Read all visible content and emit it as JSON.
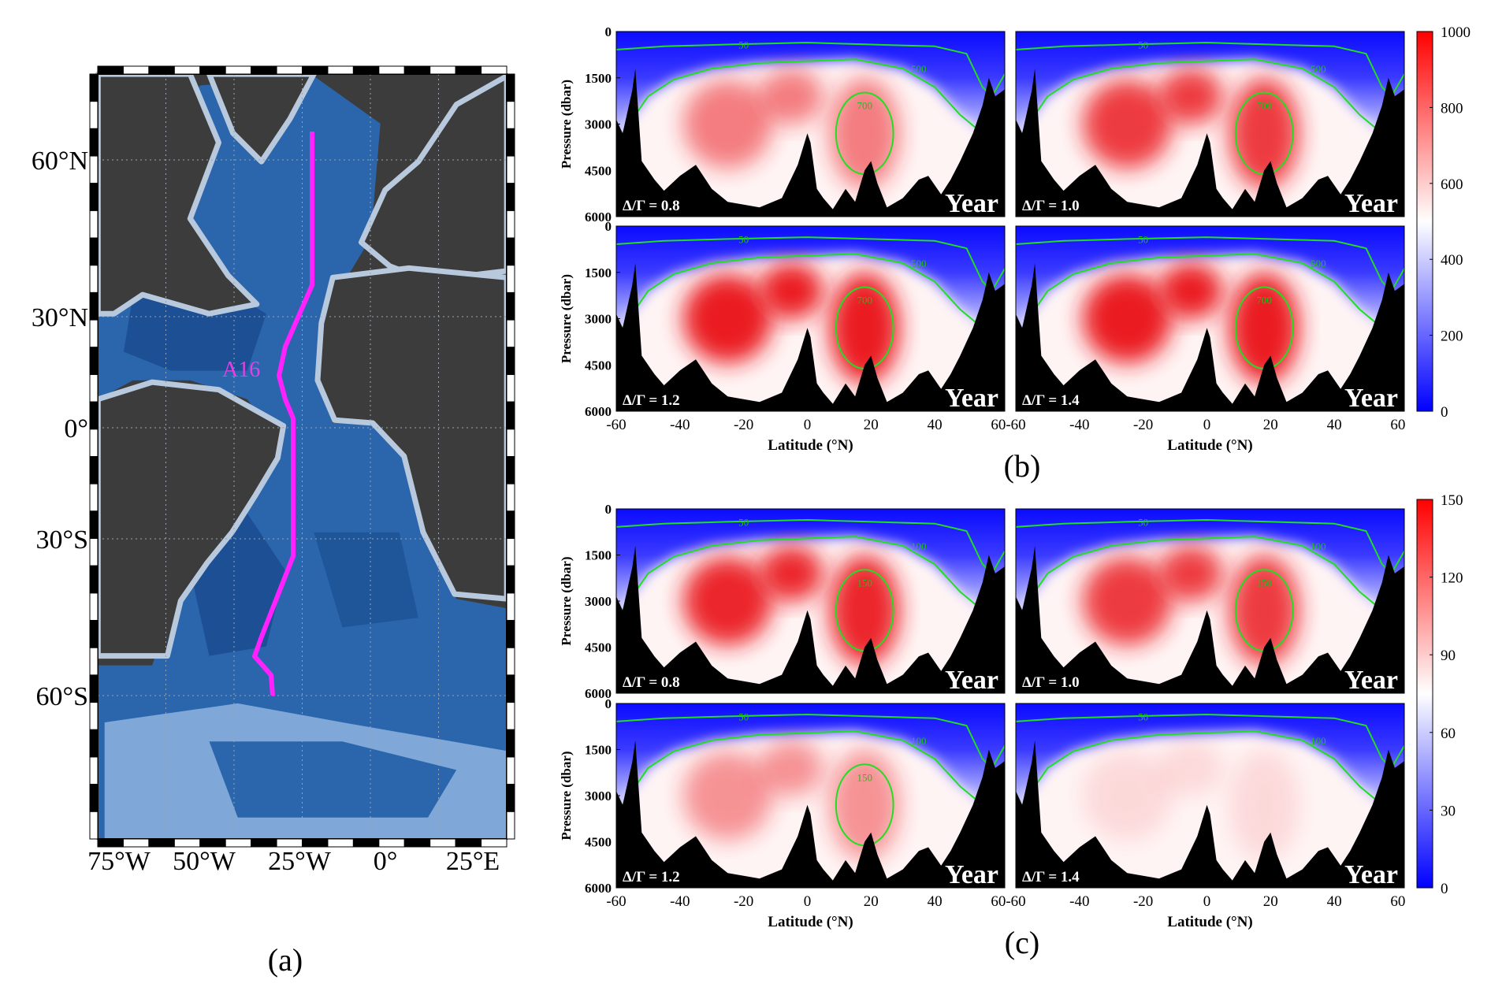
{
  "panel_a": {
    "label": "(a)",
    "lat_labels": [
      "60°N",
      "30°N",
      "0°",
      "30°S",
      "60°S"
    ],
    "lon_labels": [
      "75°W",
      "50°W",
      "25°W",
      "0°",
      "25°E"
    ],
    "section_label": "A16"
  },
  "axes": {
    "x_label": "Latitude (°N)",
    "y_label": "Pressure (dbar)",
    "x_ticks": [
      -60,
      -40,
      -20,
      0,
      20,
      40,
      60
    ],
    "xlim": [
      -60,
      62
    ],
    "y_ticks": [
      0,
      1500,
      3000,
      4500,
      6000
    ],
    "ylim": [
      0,
      6000
    ],
    "period_tag": "Year"
  },
  "panels": [
    {
      "label": "(b)",
      "colorbar_range": [
        0,
        1000
      ],
      "colorbar_ticks": [
        0,
        200,
        400,
        600,
        800,
        1000
      ],
      "contour_levels": [
        50,
        500,
        700
      ],
      "subplots": [
        {
          "ratio": "Δ/Γ = 0.8"
        },
        {
          "ratio": "Δ/Γ = 1.0"
        },
        {
          "ratio": "Δ/Γ = 1.2"
        },
        {
          "ratio": "Δ/Γ = 1.4"
        }
      ]
    },
    {
      "label": "(c)",
      "colorbar_range": [
        0,
        150
      ],
      "colorbar_ticks": [
        0,
        30,
        60,
        90,
        120,
        150
      ],
      "contour_levels": [
        50,
        100,
        150
      ],
      "subplots": [
        {
          "ratio": "Δ/Γ = 0.8"
        },
        {
          "ratio": "Δ/Γ = 1.0"
        },
        {
          "ratio": "Δ/Γ = 1.2"
        },
        {
          "ratio": "Δ/Γ = 1.4"
        }
      ]
    }
  ]
}
